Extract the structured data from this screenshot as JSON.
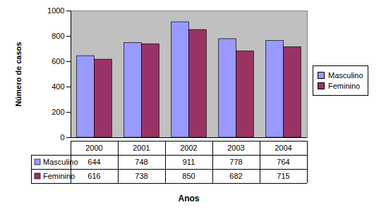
{
  "chart_data": {
    "type": "bar",
    "categories": [
      "2000",
      "2001",
      "2002",
      "2003",
      "2004"
    ],
    "series": [
      {
        "name": "Masculino",
        "color": "#9999ff",
        "values": [
          644,
          748,
          911,
          778,
          764
        ]
      },
      {
        "name": "Feminino",
        "color": "#993366",
        "values": [
          616,
          738,
          850,
          682,
          715
        ]
      }
    ],
    "xlabel": "Anos",
    "ylabel": "Número de casos",
    "ylim": [
      0,
      1000
    ],
    "yticks": [
      0,
      200,
      400,
      600,
      800,
      1000
    ],
    "grid": false,
    "legend": "right"
  }
}
